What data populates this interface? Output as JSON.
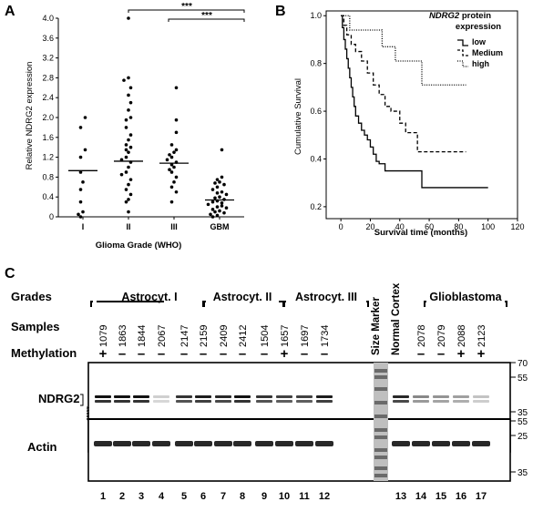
{
  "panels": {
    "a": "A",
    "b": "B",
    "c": "C"
  },
  "chart_data": [
    {
      "type": "scatter",
      "ylabel": "Relative NDRG2 expression",
      "xlabel": "Glioma Grade (WHO)",
      "categories": [
        "I",
        "II",
        "III",
        "GBM"
      ],
      "ylim": [
        0,
        4.0
      ],
      "yticks": [
        "0",
        "0.4",
        "0.8",
        "1.2",
        "1.6",
        "2.0",
        "2.4",
        "2.8",
        "3.2",
        "3.6",
        "4.0"
      ],
      "medians": [
        0.93,
        1.12,
        1.08,
        0.34
      ],
      "significance": [
        "***",
        "***"
      ],
      "series": [
        {
          "values": [
            2.0,
            1.8,
            1.35,
            1.2,
            0.9,
            0.7,
            0.55,
            0.3,
            0.1,
            0.05,
            0.0
          ]
        },
        {
          "values": [
            4.0,
            2.8,
            2.75,
            2.6,
            2.45,
            2.3,
            2.15,
            2.0,
            1.95,
            1.8,
            1.65,
            1.55,
            1.45,
            1.4,
            1.35,
            1.3,
            1.2,
            1.15,
            1.1,
            1.0,
            0.9,
            0.85,
            0.75,
            0.65,
            0.55,
            0.45,
            0.35,
            0.3,
            0.1
          ]
        },
        {
          "values": [
            2.6,
            1.95,
            1.7,
            1.45,
            1.35,
            1.3,
            1.25,
            1.2,
            1.15,
            1.1,
            1.05,
            1.0,
            0.95,
            0.9,
            0.8,
            0.7,
            0.6,
            0.5,
            0.3
          ]
        },
        {
          "values": [
            1.35,
            0.8,
            0.75,
            0.7,
            0.68,
            0.65,
            0.6,
            0.55,
            0.5,
            0.48,
            0.45,
            0.4,
            0.38,
            0.35,
            0.32,
            0.3,
            0.28,
            0.25,
            0.22,
            0.2,
            0.18,
            0.15,
            0.12,
            0.1,
            0.08,
            0.05,
            0.03,
            0.0
          ]
        }
      ]
    },
    {
      "type": "line",
      "ylabel": "Cumulative Survival",
      "xlabel": "Survival time (months)",
      "xlim": [
        -10,
        120
      ],
      "ylim": [
        0.15,
        1.02
      ],
      "xticks": [
        "0",
        "20",
        "40",
        "60",
        "80",
        "100",
        "120"
      ],
      "yticks": [
        "0.2",
        "0.4",
        "0.6",
        "0.8",
        "1.0"
      ],
      "legend_title_italic": "NDRG2",
      "legend_title_rest": " protein",
      "legend_title_line2": "expression",
      "legend_position": "top-right",
      "series": [
        {
          "name": "low",
          "x": [
            0,
            1,
            2,
            3,
            4,
            5,
            6,
            7,
            8,
            9,
            10,
            12,
            14,
            16,
            18,
            20,
            22,
            24,
            26,
            30,
            34,
            55,
            100
          ],
          "y": [
            1.0,
            0.95,
            0.9,
            0.86,
            0.82,
            0.78,
            0.74,
            0.7,
            0.66,
            0.62,
            0.58,
            0.55,
            0.52,
            0.5,
            0.48,
            0.45,
            0.42,
            0.39,
            0.38,
            0.35,
            0.35,
            0.28,
            0.28
          ]
        },
        {
          "name": "Medium",
          "x": [
            0,
            2,
            4,
            7,
            10,
            14,
            18,
            22,
            26,
            30,
            34,
            40,
            44,
            52,
            56,
            85
          ],
          "y": [
            1.0,
            0.96,
            0.92,
            0.88,
            0.85,
            0.81,
            0.76,
            0.71,
            0.67,
            0.62,
            0.6,
            0.55,
            0.51,
            0.43,
            0.43,
            0.43
          ]
        },
        {
          "name": "high",
          "x": [
            0,
            6,
            10,
            28,
            37,
            52,
            55,
            58,
            85
          ],
          "y": [
            1.0,
            0.94,
            0.94,
            0.87,
            0.81,
            0.81,
            0.71,
            0.71,
            0.71
          ]
        }
      ]
    }
  ],
  "western": {
    "row_grades": "Grades",
    "row_samples": "Samples",
    "row_methylation": "Methylation",
    "grade_groups": [
      "Astrocyt. I",
      "Astrocyt. II",
      "Astrocyt. III",
      "Glioblastoma"
    ],
    "size_marker": "Size Marker",
    "normal_cortex": "Normal Cortex",
    "samples": [
      "1079",
      "1863",
      "1844",
      "2067",
      "2147",
      "2159",
      "2409",
      "2412",
      "1504",
      "1657",
      "1697",
      "1734",
      "2078",
      "2079",
      "2088",
      "2123"
    ],
    "methylation": [
      "+",
      "–",
      "–",
      "–",
      "–",
      "–",
      "–",
      "–",
      "–",
      "+",
      "–",
      "–",
      "–",
      "–",
      "+",
      "+"
    ],
    "ndrg2_label": "NDRG2",
    "actin_label": "Actin",
    "star_marks": "*****",
    "marker_kda": [
      "70",
      "55",
      "35",
      "25"
    ],
    "actin_kda": [
      "55",
      "35"
    ],
    "lanes": [
      "1",
      "2",
      "3",
      "4",
      "5",
      "6",
      "7",
      "8",
      "9",
      "10",
      "11",
      "12",
      "13",
      "14",
      "15",
      "16",
      "17"
    ]
  }
}
